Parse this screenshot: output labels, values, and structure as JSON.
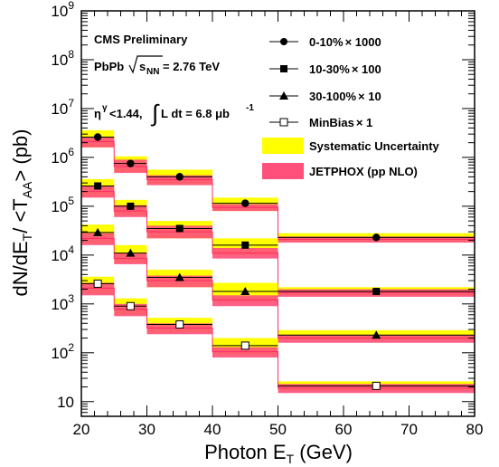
{
  "chart_data": {
    "type": "line",
    "title": "",
    "xlabel": "Photon E",
    "xlabel_sub": "T",
    "xlabel_unit": " (GeV)",
    "ylabel": "dN/dE",
    "ylabel_sub": "T",
    "ylabel_mid": "/ <T",
    "ylabel_sub2": "AA",
    "ylabel_unit": "> (pb)",
    "xlim": [
      20,
      80
    ],
    "ylim": [
      5,
      1000000000
    ],
    "yscale": "log",
    "grid": false,
    "legend_position": "top-right",
    "x_ticks": [
      20,
      30,
      40,
      50,
      60,
      70,
      80
    ],
    "y_ticks": [
      {
        "value": 10,
        "base": "10",
        "exp": ""
      },
      {
        "value": 100,
        "base": "10",
        "exp": "2"
      },
      {
        "value": 1000,
        "base": "10",
        "exp": "3"
      },
      {
        "value": 10000,
        "base": "10",
        "exp": "4"
      },
      {
        "value": 100000,
        "base": "10",
        "exp": "5"
      },
      {
        "value": 1000000,
        "base": "10",
        "exp": "6"
      },
      {
        "value": 10000000,
        "base": "10",
        "exp": "7"
      },
      {
        "value": 100000000,
        "base": "10",
        "exp": "8"
      },
      {
        "value": 1000000000,
        "base": "10",
        "exp": "9"
      }
    ],
    "bins": [
      [
        20,
        25
      ],
      [
        25,
        30
      ],
      [
        30,
        40
      ],
      [
        40,
        50
      ],
      [
        50,
        80
      ]
    ],
    "annotations": {
      "line1": "CMS Preliminary",
      "line2_a": "PbPb",
      "line2_s": "s",
      "line2_nn": "NN",
      "line2_b": " = 2.76 TeV",
      "line3_eta": "η",
      "line3_gamma": "γ",
      "line3_a": "<1.44,",
      "line3_int": "∫",
      "line3_b": " L dt = 6.8 μb",
      "line3_exp": "-1"
    },
    "colors": {
      "systematic": "#ffff00",
      "jetphox": "#ff4f7b",
      "jetphox_line": "#ff2a6a"
    },
    "series": [
      {
        "name": "0-10%",
        "scale_label": "× 1000",
        "marker": "filled-circle",
        "x": [
          22.5,
          27.5,
          35,
          45,
          65
        ],
        "y": [
          2600000,
          750000,
          400000,
          115000,
          23000
        ],
        "syst_low": [
          1600000,
          500000,
          280000,
          80000,
          19000
        ],
        "syst_high": [
          3600000,
          1050000,
          560000,
          150000,
          28000
        ],
        "jetphox_low": [
          1600000,
          480000,
          270000,
          80000,
          18000
        ],
        "jetphox_high": [
          2600000,
          900000,
          430000,
          110000,
          24000
        ],
        "jetphox_central": [
          2100000,
          650000,
          350000,
          95000,
          21000
        ]
      },
      {
        "name": "10-30%",
        "scale_label": "× 100",
        "marker": "filled-square",
        "x": [
          22.5,
          27.5,
          35,
          45,
          65
        ],
        "y": [
          260000,
          100000,
          35000,
          16000,
          1800
        ],
        "syst_low": [
          160000,
          65000,
          22000,
          10000,
          1500
        ],
        "syst_high": [
          360000,
          135000,
          50000,
          22000,
          2200
        ],
        "jetphox_low": [
          150000,
          60000,
          22000,
          8500,
          1400
        ],
        "jetphox_high": [
          260000,
          105000,
          40000,
          14000,
          2000
        ],
        "jetphox_central": [
          200000,
          80000,
          30000,
          11000,
          1700
        ]
      },
      {
        "name": "30-100%",
        "scale_label": "× 10",
        "marker": "filled-triangle",
        "x": [
          22.5,
          27.5,
          35,
          45,
          65
        ],
        "y": [
          29000,
          11000,
          3500,
          1800,
          230
        ],
        "syst_low": [
          17000,
          7000,
          2200,
          1100,
          180
        ],
        "syst_high": [
          42000,
          16000,
          5000,
          2700,
          290
        ],
        "jetphox_low": [
          16000,
          6500,
          2200,
          900,
          160
        ],
        "jetphox_high": [
          28000,
          11000,
          3800,
          1500,
          230
        ],
        "jetphox_central": [
          22000,
          8500,
          3000,
          1200,
          200
        ]
      },
      {
        "name": "MinBias",
        "scale_label": "× 1",
        "marker": "open-square",
        "x": [
          22.5,
          27.5,
          35,
          45,
          65
        ],
        "y": [
          2600,
          900,
          380,
          140,
          21
        ],
        "syst_low": [
          1600,
          600,
          260,
          90,
          17
        ],
        "syst_high": [
          3600,
          1300,
          520,
          200,
          26
        ],
        "jetphox_low": [
          1500,
          560,
          240,
          80,
          15
        ],
        "jetphox_high": [
          2700,
          1000,
          400,
          130,
          23
        ],
        "jetphox_central": [
          2100,
          780,
          320,
          105,
          19
        ]
      }
    ],
    "legend": [
      {
        "label": "0-10%",
        "scale": "× 1000",
        "marker": "filled-circle"
      },
      {
        "label": "10-30%",
        "scale": "× 100",
        "marker": "filled-square"
      },
      {
        "label": "30-100%",
        "scale": "× 10",
        "marker": "filled-triangle"
      },
      {
        "label": "MinBias",
        "scale": "× 1",
        "marker": "open-square"
      },
      {
        "label": "Systematic Uncertainty",
        "scale": "",
        "marker": "yellow-box"
      },
      {
        "label": "JETPHOX (pp NLO)",
        "scale": "",
        "marker": "pink-box"
      }
    ]
  }
}
